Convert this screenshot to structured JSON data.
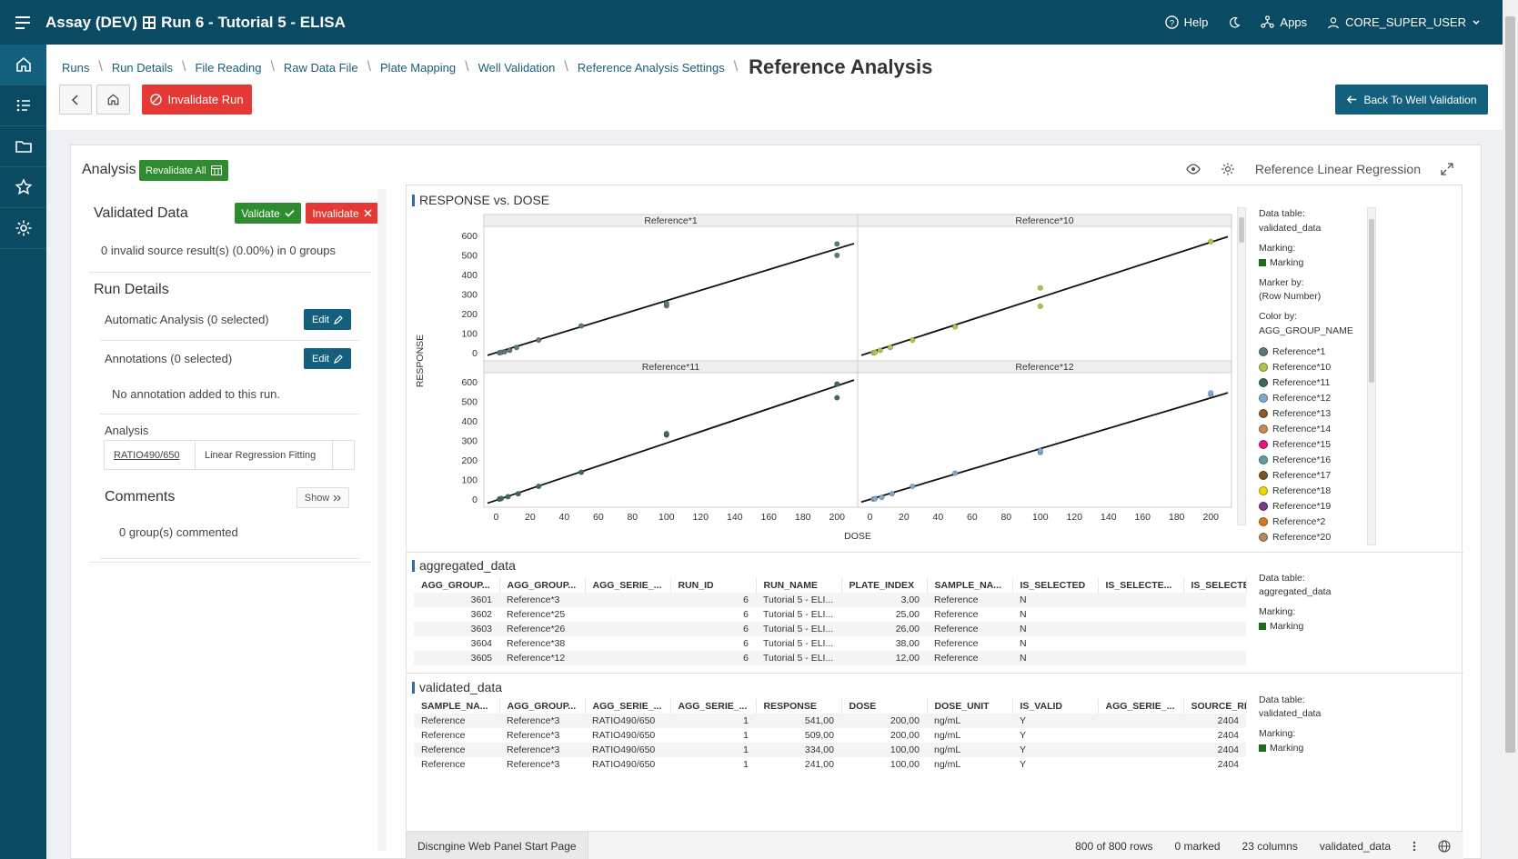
{
  "app": {
    "title": "Assay (DEV)",
    "run_title": "Run 6 - Tutorial 5 - ELISA",
    "help_label": "Help",
    "apps_label": "Apps",
    "user_label": "CORE_SUPER_USER"
  },
  "breadcrumb": {
    "items": [
      "Runs",
      "Run Details",
      "File Reading",
      "Raw Data File",
      "Plate Mapping",
      "Well Validation",
      "Reference Analysis Settings"
    ],
    "current": "Reference Analysis"
  },
  "header": {
    "invalidate_run_label": "Invalidate Run",
    "back_to_validation_label": "Back To Well Validation"
  },
  "analysis": {
    "title": "Analysis",
    "revalidate_all_label": "Revalidate All",
    "viz_name": "Reference Linear Regression"
  },
  "left_panel": {
    "validated_data_title": "Validated Data",
    "validate_label": "Validate",
    "invalidate_label": "Invalidate",
    "invalid_summary": "0 invalid source result(s) (0.00%) in 0 groups",
    "run_details_title": "Run Details",
    "automatic_analysis_label": "Automatic Analysis (0 selected)",
    "annotations_label": "Annotations (0 selected)",
    "edit_label": "Edit",
    "no_annotation_text": "No annotation added to this run.",
    "analysis_label": "Analysis",
    "analysis_ratio": "RATIO490/650",
    "analysis_method": "Linear Regression Fitting",
    "comments_title": "Comments",
    "show_label": "Show",
    "commented_text": "0 group(s) commented"
  },
  "chart_data": {
    "type": "scatter",
    "title": "RESPONSE vs. DOSE",
    "xlabel": "DOSE",
    "ylabel": "RESPONSE",
    "xlim": [
      -5,
      210
    ],
    "ylim": [
      -20,
      620
    ],
    "xticks": [
      0,
      20,
      40,
      60,
      80,
      100,
      120,
      140,
      160,
      180,
      200
    ],
    "yticks": [
      0,
      100,
      200,
      300,
      400,
      500,
      600
    ],
    "panels": [
      {
        "name": "Reference*1",
        "color": "#5a7a7a",
        "points": [
          [
            2,
            3
          ],
          [
            3,
            5
          ],
          [
            5,
            8
          ],
          [
            8,
            15
          ],
          [
            12,
            30
          ],
          [
            25,
            68
          ],
          [
            50,
            140
          ],
          [
            100,
            243
          ],
          [
            100,
            255
          ],
          [
            200,
            500
          ],
          [
            200,
            558
          ]
        ],
        "line": [
          [
            -5,
            -10
          ],
          [
            210,
            560
          ]
        ]
      },
      {
        "name": "Reference*10",
        "color": "#b5c24a",
        "points": [
          [
            2,
            3
          ],
          [
            3,
            5
          ],
          [
            6,
            15
          ],
          [
            12,
            30
          ],
          [
            25,
            68
          ],
          [
            50,
            135
          ],
          [
            100,
            240
          ],
          [
            100,
            334
          ],
          [
            200,
            570
          ]
        ],
        "line": [
          [
            -5,
            -10
          ],
          [
            210,
            595
          ]
        ]
      },
      {
        "name": "Reference*11",
        "color": "#3d6b5e",
        "points": [
          [
            2,
            3
          ],
          [
            3,
            6
          ],
          [
            7,
            15
          ],
          [
            13,
            30
          ],
          [
            25,
            68
          ],
          [
            50,
            140
          ],
          [
            100,
            330
          ],
          [
            100,
            337
          ],
          [
            200,
            520
          ],
          [
            200,
            590
          ]
        ],
        "line": [
          [
            -5,
            -18
          ],
          [
            210,
            610
          ]
        ]
      },
      {
        "name": "Reference*12",
        "color": "#7fa7d4",
        "points": [
          [
            2,
            3
          ],
          [
            3,
            5
          ],
          [
            7,
            12
          ],
          [
            13,
            30
          ],
          [
            25,
            68
          ],
          [
            50,
            135
          ],
          [
            100,
            240
          ],
          [
            100,
            250
          ],
          [
            200,
            535
          ],
          [
            200,
            545
          ]
        ],
        "line": [
          [
            -5,
            -12
          ],
          [
            210,
            545
          ]
        ]
      }
    ]
  },
  "legend": {
    "data_table_label": "Data table:",
    "data_table_value": "validated_data",
    "marking_label": "Marking:",
    "marking_value": "Marking",
    "marker_by_label": "Marker by:",
    "marker_by_value": "(Row Number)",
    "color_by_label": "Color by:",
    "color_by_value": "AGG_GROUP_NAME",
    "items": [
      {
        "name": "Reference*1",
        "color": "#5a7a7a"
      },
      {
        "name": "Reference*10",
        "color": "#b5c24a"
      },
      {
        "name": "Reference*11",
        "color": "#3d6b5e"
      },
      {
        "name": "Reference*12",
        "color": "#7fa7d4"
      },
      {
        "name": "Reference*13",
        "color": "#8a5a2b"
      },
      {
        "name": "Reference*14",
        "color": "#c48a55"
      },
      {
        "name": "Reference*15",
        "color": "#e8187a"
      },
      {
        "name": "Reference*16",
        "color": "#5f9ea0"
      },
      {
        "name": "Reference*17",
        "color": "#7a5524"
      },
      {
        "name": "Reference*18",
        "color": "#f2d600"
      },
      {
        "name": "Reference*19",
        "color": "#7a3b8a"
      },
      {
        "name": "Reference*2",
        "color": "#d47a1f"
      },
      {
        "name": "Reference*20",
        "color": "#b8865c"
      }
    ]
  },
  "aggregated": {
    "title": "aggregated_data",
    "columns": [
      "AGG_GROUP...",
      "AGG_GROUP...",
      "AGG_SERIE_...",
      "RUN_ID",
      "RUN_NAME",
      "PLATE_INDEX",
      "SAMPLE_NA...",
      "IS_SELECTED",
      "IS_SELECTE...",
      "IS_SELECTE"
    ],
    "rows": [
      [
        "3601",
        "Reference*3",
        "",
        "6",
        "Tutorial 5 - ELI...",
        "3,00",
        "Reference",
        "N",
        "",
        ""
      ],
      [
        "3602",
        "Reference*25",
        "",
        "6",
        "Tutorial 5 - ELI...",
        "25,00",
        "Reference",
        "N",
        "",
        ""
      ],
      [
        "3603",
        "Reference*26",
        "",
        "6",
        "Tutorial 5 - ELI...",
        "26,00",
        "Reference",
        "N",
        "",
        ""
      ],
      [
        "3604",
        "Reference*38",
        "",
        "6",
        "Tutorial 5 - ELI...",
        "38,00",
        "Reference",
        "N",
        "",
        ""
      ],
      [
        "3605",
        "Reference*12",
        "",
        "6",
        "Tutorial 5 - ELI...",
        "12,00",
        "Reference",
        "N",
        "",
        ""
      ]
    ],
    "legend": {
      "data_table_label": "Data table:",
      "data_table_value": "aggregated_data",
      "marking_label": "Marking:",
      "marking_value": "Marking"
    }
  },
  "validated": {
    "title": "validated_data",
    "columns": [
      "SAMPLE_NA...",
      "AGG_GROUP...",
      "AGG_SERIE_...",
      "AGG_SERIE_...",
      "RESPONSE",
      "DOSE",
      "DOSE_UNIT",
      "IS_VALID",
      "AGG_SERIE_...",
      "SOURCE_RE"
    ],
    "rows": [
      [
        "Reference",
        "Reference*3",
        "RATIO490/650",
        "1",
        "541,00",
        "200,00",
        "ng/mL",
        "Y",
        "",
        "2404"
      ],
      [
        "Reference",
        "Reference*3",
        "RATIO490/650",
        "1",
        "509,00",
        "200,00",
        "ng/mL",
        "Y",
        "",
        "2404"
      ],
      [
        "Reference",
        "Reference*3",
        "RATIO490/650",
        "1",
        "334,00",
        "100,00",
        "ng/mL",
        "Y",
        "",
        "2404"
      ],
      [
        "Reference",
        "Reference*3",
        "RATIO490/650",
        "1",
        "241,00",
        "100,00",
        "ng/mL",
        "Y",
        "",
        "2404"
      ]
    ],
    "legend": {
      "data_table_label": "Data table:",
      "data_table_value": "validated_data",
      "marking_label": "Marking:",
      "marking_value": "Marking"
    }
  },
  "statusbar": {
    "page_tab": "Discngine Web Panel Start Page",
    "rows": "800 of 800 rows",
    "marked": "0 marked",
    "columns": "23 columns",
    "table": "validated_data"
  },
  "colors": {
    "topbar": "#0a4a63",
    "accent": "#12607d",
    "success": "#2e8b2e",
    "danger": "#e53935"
  }
}
